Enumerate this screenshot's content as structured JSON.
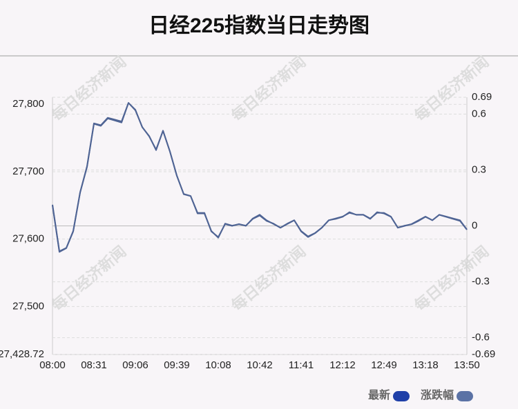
{
  "chart_data": {
    "type": "line",
    "title": "日经225指数当日走势图",
    "watermark": "每日经济新闻",
    "categories": [
      "08:00",
      null,
      null,
      null,
      null,
      null,
      "08:31",
      null,
      null,
      null,
      null,
      null,
      "09:06",
      null,
      null,
      null,
      null,
      null,
      "09:39",
      null,
      null,
      null,
      null,
      null,
      "10:08",
      null,
      null,
      null,
      null,
      null,
      "10:42",
      null,
      null,
      null,
      null,
      null,
      "11:41",
      null,
      null,
      null,
      null,
      null,
      "12:12",
      null,
      null,
      null,
      null,
      null,
      "12:49",
      null,
      null,
      null,
      null,
      null,
      "13:18",
      null,
      null,
      null,
      null,
      null,
      "13:50"
    ],
    "series": [
      {
        "name": "最新",
        "color": "#1f3fa8",
        "line_color": "#4f6494",
        "values": [
          27651,
          27582,
          27587,
          27612,
          27669,
          27707,
          27771,
          27768,
          27779,
          27776,
          27773,
          27802,
          27792,
          27766,
          27753,
          27732,
          27761,
          27730,
          27694,
          27667,
          27664,
          27638,
          27638,
          27612,
          27602,
          27623,
          27620,
          27622,
          27620,
          27630,
          27635,
          27627,
          27623,
          27617,
          27623,
          27628,
          27612,
          27604,
          27609,
          27617,
          27628,
          27630,
          27633,
          27640,
          27636,
          27636,
          27630,
          27640,
          27638,
          27633,
          27617,
          27620,
          27622,
          27627,
          27633,
          27628,
          27636,
          27633,
          27630,
          27627,
          27614
        ]
      },
      {
        "name": "涨跌幅",
        "color": "#5b72a5",
        "line_color": "#4f6494",
        "axis": "y2",
        "values": [
          0.11,
          -0.14,
          -0.12,
          -0.03,
          0.18,
          0.32,
          0.55,
          0.54,
          0.58,
          0.57,
          0.56,
          0.66,
          0.62,
          0.53,
          0.48,
          0.41,
          0.51,
          0.4,
          0.27,
          0.17,
          0.16,
          0.07,
          0.07,
          -0.03,
          -0.06,
          0.01,
          0.0,
          0.01,
          0.0,
          0.04,
          0.06,
          0.03,
          0.01,
          -0.01,
          0.01,
          0.03,
          -0.03,
          -0.06,
          -0.04,
          -0.01,
          0.03,
          0.04,
          0.05,
          0.07,
          0.06,
          0.06,
          0.04,
          0.07,
          0.07,
          0.05,
          -0.01,
          0.0,
          0.01,
          0.03,
          0.05,
          0.03,
          0.06,
          0.05,
          0.04,
          0.03,
          -0.02
        ]
      }
    ],
    "ylim": [
      27428.72,
      27810.52
    ],
    "yticks": [
      {
        "value": 27428.72,
        "label": "27,428.72"
      },
      {
        "value": 27500,
        "label": "27,500"
      },
      {
        "value": 27600,
        "label": "27,600"
      },
      {
        "value": 27700,
        "label": "27,700"
      },
      {
        "value": 27800,
        "label": "27,800"
      }
    ],
    "y2lim": [
      -0.69,
      0.69
    ],
    "y2ticks": [
      -0.69,
      -0.6,
      -0.3,
      0,
      0.3,
      0.6,
      0.69
    ],
    "grid": true,
    "legend": "bottom-right"
  }
}
